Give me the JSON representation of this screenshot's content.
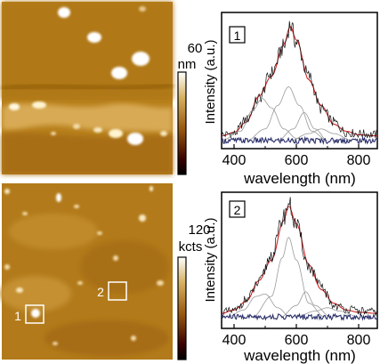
{
  "panels": [
    {
      "image_label": "",
      "colorbar": {
        "max_label": "60",
        "unit": "nm"
      },
      "plot": {
        "box_label": "1",
        "ylabel": "Intensity (a.u.)",
        "xlabel": "wavelength (nm)",
        "xticks": [
          "400",
          "600",
          "800"
        ]
      }
    },
    {
      "colorbar": {
        "max_label": "120",
        "unit": "kcts"
      },
      "markers": [
        {
          "label": "1"
        },
        {
          "label": "2"
        }
      ],
      "plot": {
        "box_label": "2",
        "ylabel": "Intensity (a.u.)",
        "xlabel": "wavelength (nm)",
        "xticks": [
          "400",
          "600",
          "800"
        ]
      }
    }
  ],
  "chart_data": [
    {
      "type": "line",
      "xlabel": "wavelength (nm)",
      "ylabel": "Intensity (a.u.)",
      "xlim": [
        360,
        860
      ],
      "ylim": [
        0,
        1.05
      ],
      "x_ticks": [
        400,
        600,
        800
      ],
      "series": [
        {
          "color": "#cc2222",
          "x": [
            360,
            400,
            440,
            480,
            520,
            560,
            580,
            600,
            640,
            680,
            720,
            760,
            800,
            860
          ],
          "y": [
            0.04,
            0.07,
            0.16,
            0.38,
            0.55,
            0.82,
            0.98,
            0.86,
            0.52,
            0.3,
            0.14,
            0.08,
            0.05,
            0.04
          ]
        },
        {
          "color": "#111111",
          "x": [
            360,
            400,
            440,
            480,
            520,
            560,
            580,
            600,
            640,
            680,
            720,
            760,
            800,
            860
          ],
          "y": [
            0.05,
            0.06,
            0.18,
            0.36,
            0.58,
            0.8,
            0.99,
            0.84,
            0.55,
            0.27,
            0.16,
            0.07,
            0.06,
            0.05
          ]
        },
        {
          "color": "#9a9a9a",
          "x": [
            360,
            420,
            460,
            490,
            520,
            560,
            600,
            640
          ],
          "y": [
            0.0,
            0.08,
            0.26,
            0.36,
            0.28,
            0.1,
            0.02,
            0.0
          ]
        },
        {
          "color": "#9a9a9a",
          "x": [
            440,
            500,
            540,
            575,
            610,
            650,
            700
          ],
          "y": [
            0.0,
            0.1,
            0.3,
            0.46,
            0.3,
            0.08,
            0.0
          ]
        },
        {
          "color": "#9a9a9a",
          "x": [
            540,
            590,
            625,
            660,
            700
          ],
          "y": [
            0.0,
            0.1,
            0.24,
            0.1,
            0.0
          ]
        },
        {
          "color": "#9a9a9a",
          "x": [
            580,
            640,
            680,
            720,
            780
          ],
          "y": [
            0.0,
            0.06,
            0.1,
            0.06,
            0.0
          ]
        },
        {
          "color": "#2a2f6a",
          "x": [
            360,
            860
          ],
          "y": [
            0.0,
            0.0
          ]
        }
      ]
    },
    {
      "type": "line",
      "xlabel": "wavelength (nm)",
      "ylabel": "Intensity (a.u.)",
      "xlim": [
        360,
        860
      ],
      "ylim": [
        0,
        1.05
      ],
      "x_ticks": [
        400,
        600,
        800
      ],
      "series": [
        {
          "color": "#cc2222",
          "x": [
            360,
            400,
            440,
            480,
            520,
            560,
            575,
            600,
            640,
            680,
            720,
            760,
            800,
            860
          ],
          "y": [
            0.03,
            0.06,
            0.14,
            0.32,
            0.5,
            0.85,
            0.98,
            0.82,
            0.46,
            0.24,
            0.12,
            0.06,
            0.04,
            0.03
          ]
        },
        {
          "color": "#111111",
          "x": [
            360,
            400,
            440,
            480,
            520,
            560,
            575,
            600,
            640,
            680,
            720,
            760,
            800,
            860
          ],
          "y": [
            0.04,
            0.05,
            0.15,
            0.3,
            0.54,
            0.88,
            1.0,
            0.8,
            0.44,
            0.26,
            0.1,
            0.07,
            0.05,
            0.04
          ]
        },
        {
          "color": "#9a9a9a",
          "x": [
            380,
            430,
            470,
            500,
            540,
            580
          ],
          "y": [
            0.0,
            0.06,
            0.18,
            0.2,
            0.08,
            0.0
          ]
        },
        {
          "color": "#9a9a9a",
          "x": [
            460,
            520,
            555,
            575,
            600,
            640,
            690
          ],
          "y": [
            0.0,
            0.18,
            0.52,
            0.7,
            0.5,
            0.12,
            0.0
          ]
        },
        {
          "color": "#9a9a9a",
          "x": [
            550,
            600,
            630,
            660,
            710
          ],
          "y": [
            0.0,
            0.1,
            0.22,
            0.1,
            0.0
          ]
        },
        {
          "color": "#9a9a9a",
          "x": [
            600,
            660,
            700,
            740,
            800
          ],
          "y": [
            0.0,
            0.05,
            0.08,
            0.05,
            0.0
          ]
        },
        {
          "color": "#2a2f6a",
          "x": [
            360,
            860
          ],
          "y": [
            0.0,
            0.0
          ]
        }
      ]
    }
  ]
}
